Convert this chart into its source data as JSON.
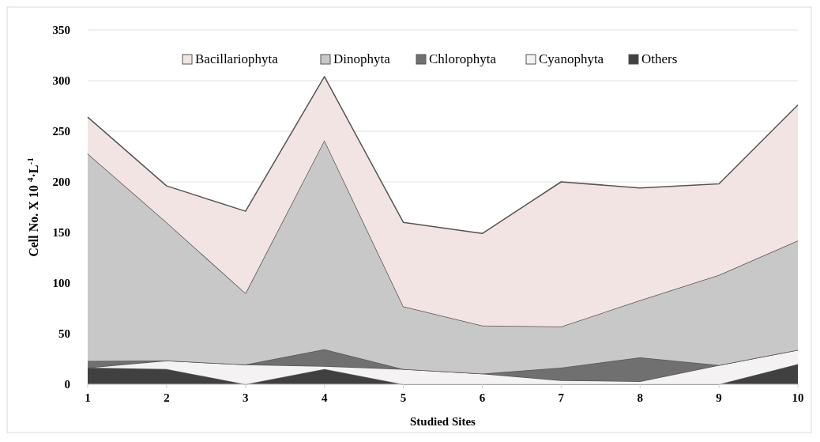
{
  "chart_data": {
    "type": "area",
    "stacked": true,
    "xlabel": "Studied Sites",
    "ylabel": "Cell No. X 10 $^{4}$·L$^{-1}$",
    "categories": [
      "1",
      "2",
      "3",
      "4",
      "5",
      "6",
      "7",
      "8",
      "9",
      "10"
    ],
    "series": [
      {
        "name": "Others",
        "color": "#404040",
        "values": [
          16.5,
          15,
          0,
          15,
          0,
          0,
          0,
          0,
          0,
          20
        ]
      },
      {
        "name": "Cyanophyta",
        "color": "#f4f2f2",
        "values": [
          0,
          8.5,
          19.5,
          3,
          15,
          10.5,
          4,
          3,
          19,
          14
        ]
      },
      {
        "name": "Chlorophyta",
        "color": "#707070",
        "values": [
          6.5,
          0,
          0,
          16.5,
          0,
          0,
          12.5,
          23.5,
          0,
          0
        ]
      },
      {
        "name": "Dinophyta",
        "color": "#c8c8c8",
        "values": [
          205,
          136.5,
          70.5,
          206.5,
          62,
          47.5,
          40.5,
          56.5,
          89,
          108
        ]
      },
      {
        "name": "Bacillariophyta",
        "color": "#f3e4e4",
        "values": [
          36,
          36,
          81,
          63,
          83,
          91,
          143,
          111,
          90,
          134
        ]
      }
    ],
    "ylim": [
      0,
      350
    ],
    "yticks": [
      0,
      50,
      100,
      150,
      200,
      250,
      300,
      350
    ],
    "grid": "y",
    "legend": "top"
  }
}
